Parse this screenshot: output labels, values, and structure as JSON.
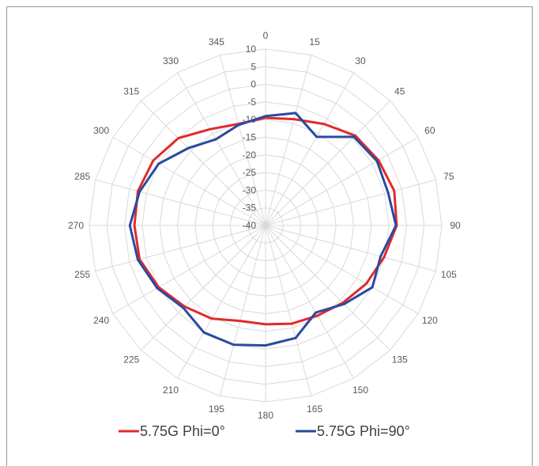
{
  "chart_data": {
    "type": "polar-line",
    "angle_labels": [
      "0",
      "15",
      "30",
      "45",
      "60",
      "75",
      "90",
      "105",
      "120",
      "135",
      "150",
      "165",
      "180",
      "195",
      "210",
      "225",
      "240",
      "255",
      "270",
      "285",
      "300",
      "315",
      "330",
      "345"
    ],
    "radial_ticks": [
      "10",
      "5",
      "0",
      "-5",
      "-10",
      "-15",
      "-20",
      "-25",
      "-30",
      "-35",
      "-40"
    ],
    "rlim": [
      -40,
      10
    ],
    "grid": true,
    "legend_position": "bottom",
    "series": [
      {
        "name": "5.75G Phi=0°",
        "color": "#e02b2b",
        "values": [
          -9.5,
          -8.8,
          -6.8,
          -4.0,
          -3.0,
          -2.2,
          -2.8,
          -5.2,
          -7.0,
          -9.0,
          -10.5,
          -11.2,
          -12.0,
          -12.0,
          -9.5,
          -7.5,
          -5.0,
          -3.0,
          -2.8,
          -2.5,
          -3.2,
          -5.0,
          -8.5,
          -10.2
        ]
      },
      {
        "name": "5.75G Phi=90°",
        "color": "#2a4aa0",
        "values": [
          -9.0,
          -7.0,
          -11.0,
          -4.5,
          -3.5,
          -4.0,
          -3.0,
          -6.2,
          -5.0,
          -8.5,
          -11.5,
          -7.0,
          -6.0,
          -5.0,
          -5.0,
          -7.0,
          -4.5,
          -2.5,
          -1.5,
          -3.0,
          -5.0,
          -9.0,
          -11.8,
          -10.5
        ]
      }
    ]
  }
}
